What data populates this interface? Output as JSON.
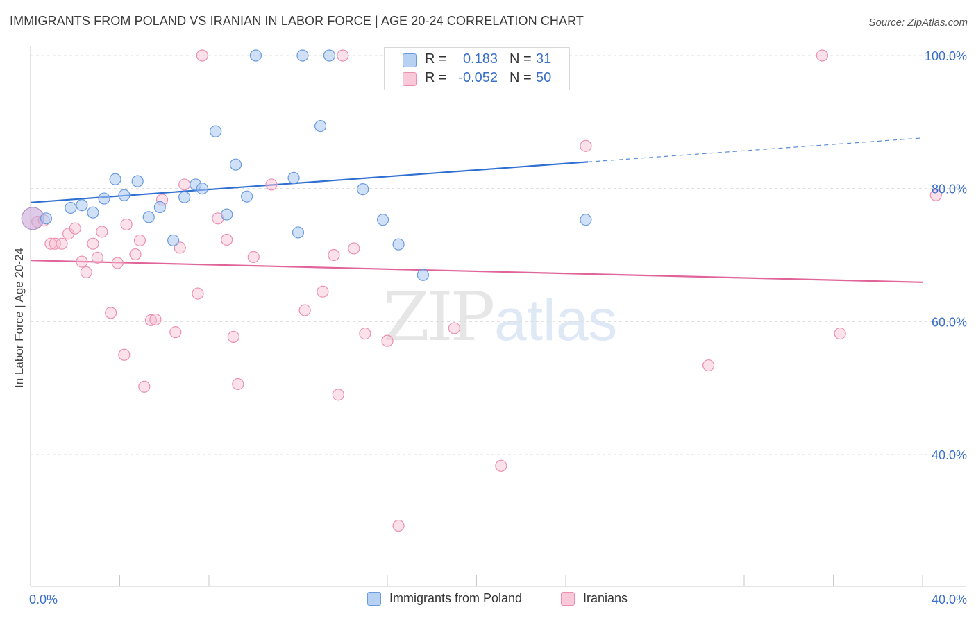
{
  "title": "IMMIGRANTS FROM POLAND VS IRANIAN IN LABOR FORCE | AGE 20-24 CORRELATION CHART",
  "source": "Source: ZipAtlas.com",
  "watermark": {
    "part1": "ZIP",
    "part2": "atlas"
  },
  "legend_top": {
    "rows": [
      {
        "r_label": "R =",
        "r_value": "0.183",
        "n_label": "N =",
        "n_value": "31"
      },
      {
        "r_label": "R =",
        "r_value": "-0.052",
        "n_label": "N =",
        "n_value": "50"
      }
    ]
  },
  "legend_bottom": [
    "Immigrants from Poland",
    "Iranians"
  ],
  "chart_data": {
    "type": "scatter",
    "title": "IMMIGRANTS FROM POLAND VS IRANIAN IN LABOR FORCE | AGE 20-24 CORRELATION CHART",
    "xlabel": "",
    "ylabel": "In Labor Force | Age 20-24",
    "xlim": [
      0,
      40
    ],
    "ylim": [
      20,
      102
    ],
    "x_tick_labels": [
      {
        "value": 0,
        "label": "0.0%"
      },
      {
        "value": 40,
        "label": "40.0%"
      }
    ],
    "y_tick_labels": [
      {
        "value": 40,
        "label": "40.0%"
      },
      {
        "value": 60,
        "label": "60.0%"
      },
      {
        "value": 80,
        "label": "80.0%"
      },
      {
        "value": 100,
        "label": "100.0%"
      }
    ],
    "grid": true,
    "legend_position": "bottom",
    "colors": {
      "poland_fill": "#a9c8f0",
      "poland_stroke": "#6a9be0",
      "poland_line": "#2f6fd0",
      "iran_fill": "#f7bcd0",
      "iran_stroke": "#ec8fb0",
      "iran_line": "#e0649a",
      "axis_value_text": "#3b70c9"
    },
    "series": [
      {
        "name": "Immigrants from Poland",
        "points": [
          [
            0.1,
            75.5
          ],
          [
            0.7,
            75.5
          ],
          [
            1.8,
            77.1
          ],
          [
            2.3,
            77.5
          ],
          [
            2.8,
            76.4
          ],
          [
            3.3,
            78.5
          ],
          [
            3.8,
            81.4
          ],
          [
            4.2,
            79.0
          ],
          [
            4.8,
            81.1
          ],
          [
            5.3,
            75.7
          ],
          [
            5.8,
            77.2
          ],
          [
            6.4,
            72.2
          ],
          [
            6.9,
            78.7
          ],
          [
            7.4,
            80.6
          ],
          [
            7.7,
            80.0
          ],
          [
            8.3,
            88.6
          ],
          [
            8.8,
            76.1
          ],
          [
            9.2,
            83.6
          ],
          [
            9.7,
            78.8
          ],
          [
            10.1,
            100
          ],
          [
            11.8,
            81.6
          ],
          [
            12.0,
            73.4
          ],
          [
            12.2,
            100
          ],
          [
            13.0,
            89.4
          ],
          [
            13.4,
            100
          ],
          [
            14.9,
            79.9
          ],
          [
            15.8,
            75.3
          ],
          [
            16.5,
            71.6
          ],
          [
            17.6,
            67.0
          ],
          [
            19.6,
            100
          ],
          [
            24.9,
            75.3
          ]
        ],
        "trend": {
          "x0": 0,
          "y0": 77.9,
          "x1": 25,
          "y1": 84.0,
          "x_dash_end": 40,
          "y_dash_end": 87.6
        }
      },
      {
        "name": "Iranians",
        "points": [
          [
            0.3,
            75.0
          ],
          [
            0.6,
            75.2
          ],
          [
            0.9,
            71.7
          ],
          [
            1.1,
            71.7
          ],
          [
            1.4,
            71.7
          ],
          [
            1.7,
            73.2
          ],
          [
            2.0,
            74.0
          ],
          [
            2.3,
            69.0
          ],
          [
            2.5,
            67.4
          ],
          [
            2.8,
            71.7
          ],
          [
            3.0,
            69.6
          ],
          [
            3.2,
            73.5
          ],
          [
            3.6,
            61.3
          ],
          [
            3.9,
            68.8
          ],
          [
            4.2,
            55.0
          ],
          [
            4.3,
            74.6
          ],
          [
            4.7,
            70.1
          ],
          [
            4.9,
            72.2
          ],
          [
            5.1,
            50.2
          ],
          [
            5.4,
            60.2
          ],
          [
            5.6,
            60.3
          ],
          [
            5.9,
            78.3
          ],
          [
            6.5,
            58.4
          ],
          [
            6.7,
            71.1
          ],
          [
            6.9,
            80.6
          ],
          [
            7.5,
            64.2
          ],
          [
            7.7,
            100
          ],
          [
            8.4,
            75.5
          ],
          [
            8.8,
            72.3
          ],
          [
            9.1,
            57.7
          ],
          [
            9.3,
            50.6
          ],
          [
            10.0,
            69.7
          ],
          [
            10.8,
            80.6
          ],
          [
            12.3,
            61.7
          ],
          [
            13.1,
            64.5
          ],
          [
            13.6,
            70.0
          ],
          [
            13.8,
            49.0
          ],
          [
            14.0,
            100
          ],
          [
            14.5,
            71.0
          ],
          [
            15.0,
            58.2
          ],
          [
            16.0,
            57.1
          ],
          [
            16.5,
            29.3
          ],
          [
            18.5,
            100
          ],
          [
            19.0,
            59.0
          ],
          [
            21.1,
            38.3
          ],
          [
            24.9,
            86.4
          ],
          [
            30.4,
            53.4
          ],
          [
            35.5,
            100
          ],
          [
            36.3,
            58.2
          ],
          [
            40.6,
            79.0
          ]
        ],
        "trend": {
          "x0": 0,
          "y0": 69.2,
          "x1": 40,
          "y1": 65.9
        }
      }
    ]
  }
}
